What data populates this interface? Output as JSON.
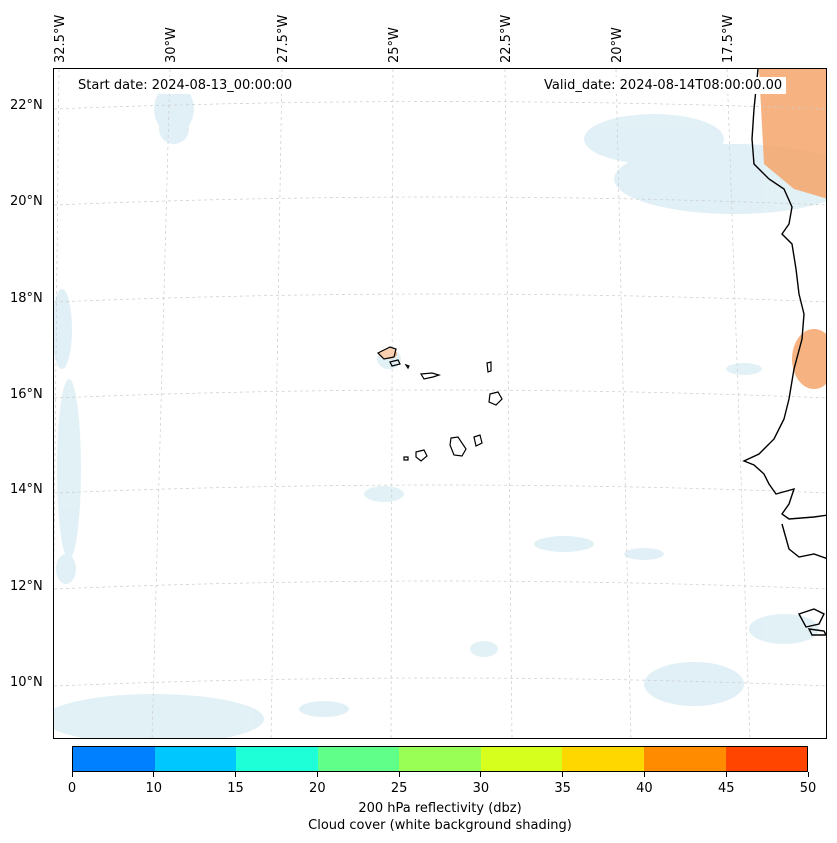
{
  "map": {
    "start_date": "Start date: 2024-08-13_00:00:00",
    "valid_date": "Valid_date: 2024-08-14T08:00:00.00",
    "longitude_labels": [
      "32.5°W",
      "30°W",
      "27.5°W",
      "25°W",
      "22.5°W",
      "20°W",
      "17.5°W"
    ],
    "latitude_labels": [
      "22°N",
      "20°N",
      "18°N",
      "16°N",
      "14°N",
      "12°N",
      "10°N"
    ],
    "colors": {
      "coastline": "#000000",
      "gridline": "#cccccc",
      "cloud_shading": "#d8ecf3",
      "reflectivity_high": "#f4a46a"
    }
  },
  "colorbar": {
    "ticks": [
      "0",
      "10",
      "15",
      "20",
      "25",
      "30",
      "35",
      "40",
      "45",
      "50"
    ],
    "colors": [
      "#0080ff",
      "#00c8ff",
      "#1effd8",
      "#5fff8a",
      "#99ff55",
      "#d6ff1e",
      "#ffd700",
      "#ff8c00",
      "#ff4500"
    ],
    "label_line1": "200 hPa reflectivity (dbz)",
    "label_line2": "Cloud cover (white background shading)"
  }
}
